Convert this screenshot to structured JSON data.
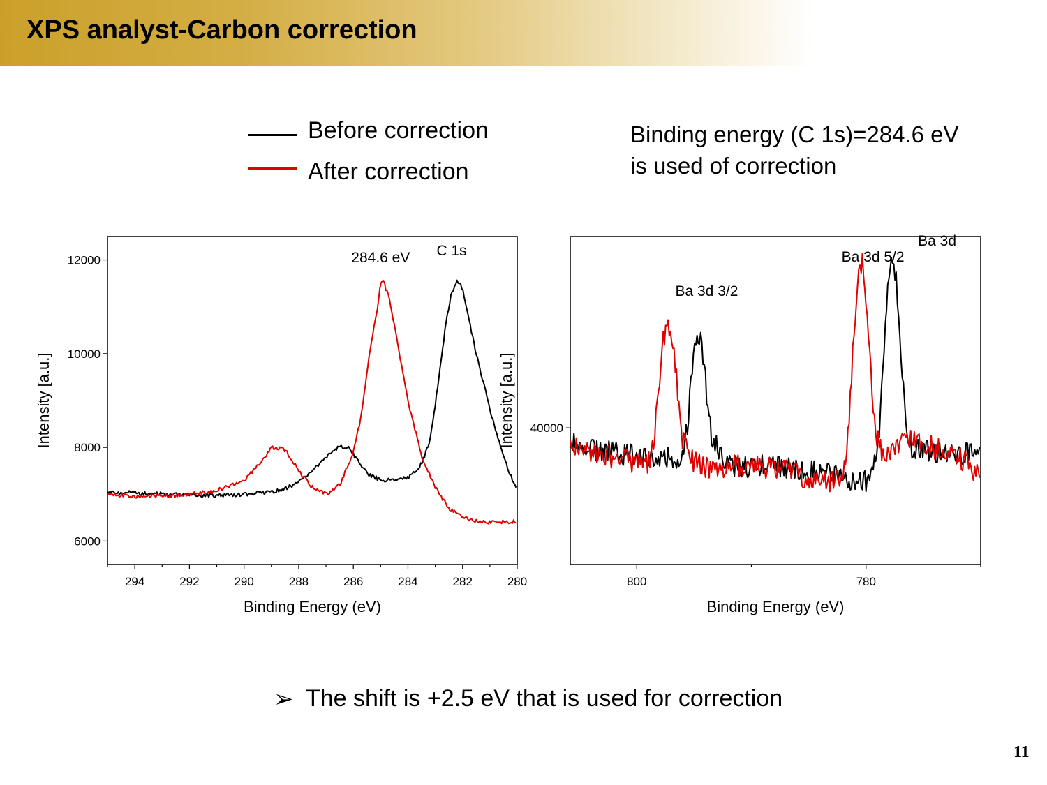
{
  "slide": {
    "title": "XPS analyst-Carbon correction",
    "legend": [
      {
        "label": "Before correction",
        "color": "#000000"
      },
      {
        "label": "After correction",
        "color": "#e00000"
      }
    ],
    "note_line1": "Binding energy (C 1s)=284.6 eV",
    "note_line2": "is used of correction",
    "bullet_icon": "arrow-bullet-icon",
    "bullet_symbol": "➢",
    "bullet_text": "The shift is +2.5 eV that is used for correction",
    "page_number": "11"
  },
  "chart_data": [
    {
      "type": "line",
      "xlabel": "Binding Energy (eV)",
      "ylabel": "Intensity [a.u.]",
      "xlim": [
        295,
        280
      ],
      "ylim": [
        5500,
        12500
      ],
      "x_ticks": [
        294,
        292,
        290,
        288,
        286,
        284,
        282,
        280
      ],
      "y_ticks": [
        6000,
        8000,
        10000,
        12000
      ],
      "annotations": [
        {
          "text": "284.6 eV",
          "x": 285.0,
          "y": 11950
        },
        {
          "text": "C 1s",
          "x": 282.4,
          "y": 12100
        }
      ],
      "series": [
        {
          "name": "Before correction",
          "color": "#000000",
          "x": [
            295,
            294,
            293,
            292,
            291,
            290,
            289,
            288.5,
            288,
            287.5,
            287,
            286.5,
            286.2,
            286,
            285.5,
            285,
            284.5,
            284,
            283.5,
            283.2,
            283,
            282.8,
            282.6,
            282.4,
            282.2,
            282,
            281.8,
            281.5,
            281,
            280.5,
            280
          ],
          "y": [
            7050,
            7030,
            7000,
            6980,
            6970,
            7000,
            7050,
            7120,
            7250,
            7500,
            7800,
            8030,
            8000,
            7850,
            7450,
            7300,
            7300,
            7350,
            7650,
            8150,
            8900,
            9800,
            10700,
            11300,
            11550,
            11400,
            10800,
            10000,
            8800,
            7800,
            7050
          ]
        },
        {
          "name": "After correction",
          "color": "#e00000",
          "x": [
            295,
            294,
            293,
            292,
            291,
            290,
            289.5,
            289,
            288.5,
            288,
            287.5,
            287,
            286.5,
            286,
            285.7,
            285.5,
            285.3,
            285.1,
            285,
            284.9,
            284.7,
            284.5,
            284,
            283.5,
            283,
            282.5,
            282,
            281.5,
            281,
            280.5,
            280
          ],
          "y": [
            7000,
            6950,
            6960,
            7000,
            7080,
            7300,
            7600,
            8000,
            7950,
            7500,
            7150,
            7000,
            7200,
            7900,
            8700,
            9600,
            10400,
            11000,
            11500,
            11550,
            11200,
            10600,
            9000,
            7800,
            7150,
            6700,
            6500,
            6420,
            6400,
            6410,
            6420
          ]
        }
      ]
    },
    {
      "type": "line",
      "xlabel": "Binding Energy (eV)",
      "ylabel": "Intensity [a.u.]",
      "xlim": [
        805.8,
        770
      ],
      "ylim": [
        34000,
        48400
      ],
      "x_ticks": [
        800,
        780
      ],
      "y_ticks": [
        40000
      ],
      "annotations": [
        {
          "text": "Ba 3d",
          "x": 773.8,
          "y": 48000
        },
        {
          "text": "Ba 3d 5/2",
          "x": 779.4,
          "y": 47300
        },
        {
          "text": "Ba 3d 3/2",
          "x": 793.9,
          "y": 45800
        }
      ],
      "series": [
        {
          "name": "Before correction",
          "color": "#000000",
          "x": [
            805.8,
            804,
            802,
            800,
            798,
            796.5,
            796,
            795.6,
            795.3,
            795,
            794.7,
            794.4,
            794,
            793.5,
            792,
            790,
            788,
            786,
            784,
            782,
            780,
            779.5,
            778.8,
            778.3,
            778,
            777.7,
            777.4,
            777,
            776.6,
            776.2,
            775.8,
            775,
            772,
            770
          ],
          "y": [
            39400,
            39000,
            38900,
            38800,
            38700,
            38700,
            39000,
            40000,
            42000,
            43900,
            44200,
            44000,
            42000,
            39600,
            38400,
            38300,
            38400,
            38200,
            38100,
            37800,
            37600,
            37700,
            40000,
            44500,
            46900,
            47200,
            46700,
            43700,
            40500,
            39300,
            39000,
            39000,
            38900,
            38800
          ]
        },
        {
          "name": "After correction",
          "color": "#e00000",
          "x": [
            805.8,
            804,
            802,
            800,
            799,
            798.5,
            798.2,
            797.8,
            797.4,
            797.1,
            796.8,
            796.5,
            796,
            795,
            794,
            792,
            790,
            788,
            786,
            785,
            784.5,
            784,
            783,
            782,
            781.5,
            781,
            780.6,
            780.3,
            780,
            779.7,
            779.3,
            778.8,
            778.3,
            777.5,
            776,
            774,
            772,
            771,
            770
          ],
          "y": [
            39400,
            38900,
            38700,
            38500,
            38400,
            39300,
            41000,
            43500,
            44400,
            44400,
            43800,
            42000,
            39500,
            38500,
            38200,
            38300,
            38400,
            38200,
            38000,
            37700,
            37500,
            37700,
            37600,
            38000,
            40000,
            44600,
            47300,
            47200,
            45800,
            43500,
            40400,
            39000,
            38900,
            39300,
            39500,
            39100,
            38800,
            38300,
            37700
          ]
        }
      ]
    }
  ]
}
